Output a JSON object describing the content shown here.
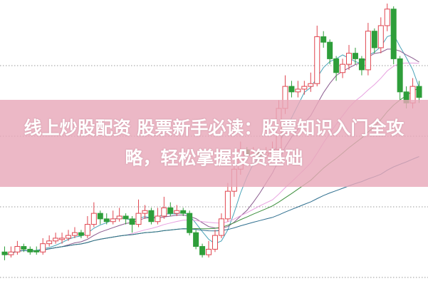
{
  "banner": {
    "title": "线上炒股配资 股票新手必读：股票知识入门全攻略，轻松掌握投资基础"
  },
  "chart_data": {
    "type": "candlestick",
    "grid": "horizontal-dotted",
    "ylim": [
      0,
      100
    ],
    "colors": {
      "up": "#e0454f",
      "down": "#2e9e3a",
      "grid": "#999999",
      "banner": "#e8a8ba"
    },
    "moving_averages": [
      {
        "period": 5,
        "color": "#4aa3b8"
      },
      {
        "period": 10,
        "color": "#8a5a8e"
      },
      {
        "period": 20,
        "color": "#e8a0e0"
      },
      {
        "period": 30,
        "color": "#3d8f3d"
      },
      {
        "period": 60,
        "color": "#2f6f8f"
      }
    ],
    "ohlc": [
      [
        10,
        12,
        7,
        9
      ],
      [
        9,
        12,
        8,
        10
      ],
      [
        10,
        14,
        9,
        12
      ],
      [
        12,
        13,
        10,
        11
      ],
      [
        11,
        12,
        9,
        10
      ],
      [
        10.5,
        12,
        9,
        10
      ],
      [
        10,
        15,
        9,
        13
      ],
      [
        13,
        16,
        12,
        14
      ],
      [
        14,
        17,
        13,
        15
      ],
      [
        14.5,
        17,
        13,
        15
      ],
      [
        15,
        18,
        14,
        16
      ],
      [
        16,
        19,
        15,
        17
      ],
      [
        17,
        18,
        15,
        16
      ],
      [
        16,
        23,
        15,
        20
      ],
      [
        20,
        28,
        19,
        24
      ],
      [
        24,
        25,
        20,
        22
      ],
      [
        22,
        24,
        20,
        21
      ],
      [
        21,
        25,
        20,
        22
      ],
      [
        22,
        26,
        21,
        23
      ],
      [
        23,
        24,
        20,
        22
      ],
      [
        22,
        23,
        17,
        20
      ],
      [
        20,
        29,
        19,
        24
      ],
      [
        24,
        27,
        22,
        25
      ],
      [
        25,
        26,
        20,
        21
      ],
      [
        21,
        26,
        20,
        23
      ],
      [
        23,
        30,
        22,
        26
      ],
      [
        26,
        28,
        23,
        24
      ],
      [
        24,
        27,
        23,
        25
      ],
      [
        25,
        26,
        23,
        24
      ],
      [
        24,
        25,
        16,
        17
      ],
      [
        17,
        18,
        11,
        12
      ],
      [
        12,
        13,
        8,
        9
      ],
      [
        9,
        14,
        8,
        11
      ],
      [
        11,
        18,
        10,
        16
      ],
      [
        16,
        24,
        15,
        22
      ],
      [
        22,
        35,
        21,
        32
      ],
      [
        32,
        42,
        30,
        40
      ],
      [
        40,
        50,
        38,
        47
      ],
      [
        47,
        48,
        43,
        45
      ],
      [
        45,
        48,
        44,
        46
      ],
      [
        46,
        47,
        43,
        45
      ],
      [
        45,
        48,
        44,
        46
      ],
      [
        46,
        50,
        45,
        47
      ],
      [
        47,
        65,
        45,
        62
      ],
      [
        62,
        74,
        60,
        70
      ],
      [
        70,
        72,
        66,
        68
      ],
      [
        68,
        72,
        66,
        69
      ],
      [
        69,
        72,
        67,
        70
      ],
      [
        70,
        75,
        68,
        71
      ],
      [
        71,
        92,
        70,
        88
      ],
      [
        88,
        90,
        84,
        86
      ],
      [
        86,
        87,
        78,
        80
      ],
      [
        80,
        81,
        72,
        75
      ],
      [
        75,
        80,
        73,
        78
      ],
      [
        78,
        85,
        76,
        82
      ],
      [
        82,
        84,
        78,
        80
      ],
      [
        80,
        81,
        74,
        76
      ],
      [
        76,
        93,
        74,
        90
      ],
      [
        90,
        91,
        82,
        84
      ],
      [
        84,
        95,
        82,
        92
      ],
      [
        92,
        100,
        90,
        98
      ],
      [
        98,
        99,
        78,
        80
      ],
      [
        80,
        81,
        65,
        68
      ],
      [
        68,
        70,
        62,
        64
      ],
      [
        64,
        73,
        62,
        70
      ],
      [
        70,
        72,
        64,
        66
      ]
    ]
  }
}
